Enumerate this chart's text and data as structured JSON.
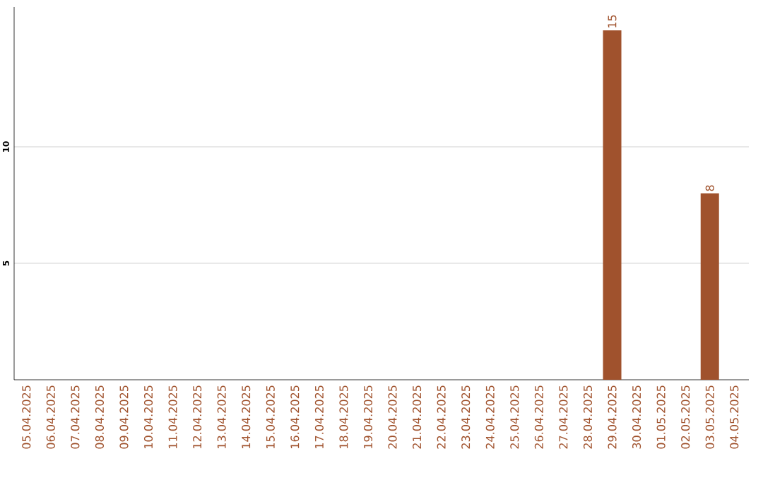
{
  "chart_data": {
    "type": "bar",
    "categories": [
      "05.04.2025",
      "06.04.2025",
      "07.04.2025",
      "08.04.2025",
      "09.04.2025",
      "10.04.2025",
      "11.04.2025",
      "12.04.2025",
      "13.04.2025",
      "14.04.2025",
      "15.04.2025",
      "16.04.2025",
      "17.04.2025",
      "18.04.2025",
      "19.04.2025",
      "20.04.2025",
      "21.04.2025",
      "22.04.2025",
      "23.04.2025",
      "24.04.2025",
      "25.04.2025",
      "26.04.2025",
      "27.04.2025",
      "28.04.2025",
      "29.04.2025",
      "30.04.2025",
      "01.05.2025",
      "02.05.2025",
      "03.05.2025",
      "04.05.2025"
    ],
    "values": [
      0,
      0,
      0,
      0,
      0,
      0,
      0,
      0,
      0,
      0,
      0,
      0,
      0,
      0,
      0,
      0,
      0,
      0,
      0,
      0,
      0,
      0,
      0,
      0,
      15,
      0,
      0,
      0,
      8,
      0
    ],
    "value_labels": [
      null,
      null,
      null,
      null,
      null,
      null,
      null,
      null,
      null,
      null,
      null,
      null,
      null,
      null,
      null,
      null,
      null,
      null,
      null,
      null,
      null,
      null,
      null,
      null,
      "15",
      null,
      null,
      null,
      "8",
      null
    ],
    "color": "#a0522d",
    "ylim": [
      0,
      16
    ],
    "yticks": [
      5,
      10
    ],
    "grid": "y"
  }
}
